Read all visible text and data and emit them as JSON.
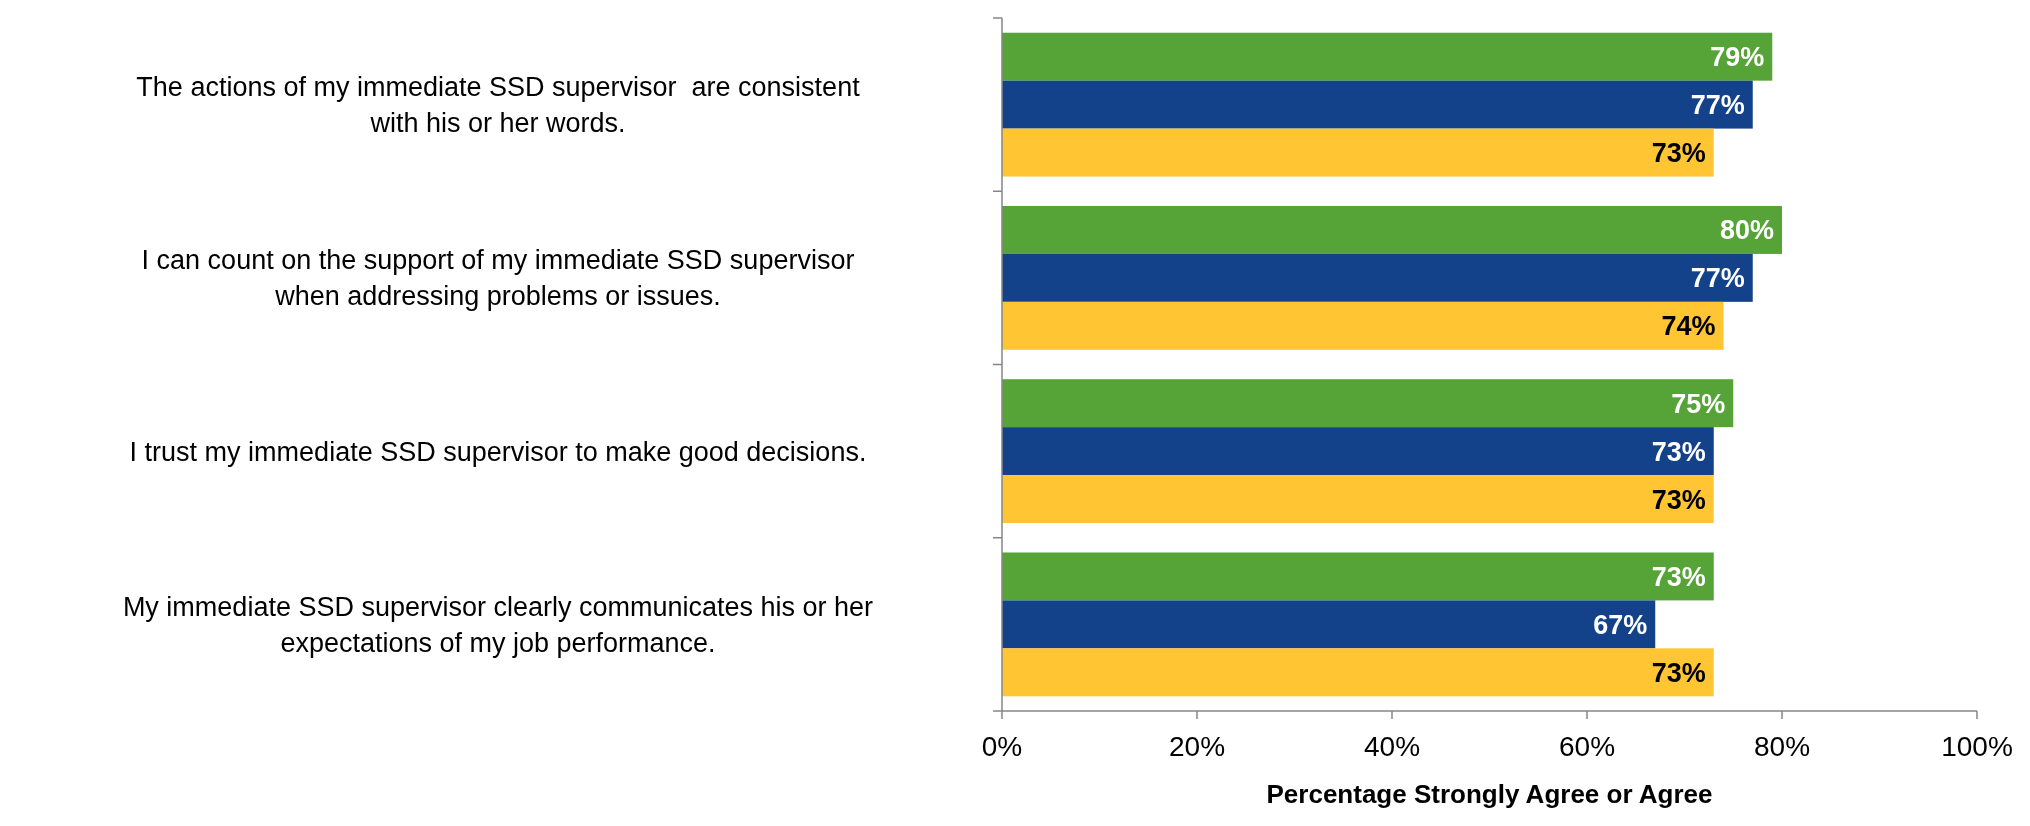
{
  "chart_data": {
    "type": "bar",
    "orientation": "horizontal",
    "xlabel": "Percentage Strongly Agree or Agree",
    "categories": [
      "The actions of my immediate SSD supervisor  are consistent with his or her words.",
      "I can count on the support of my immediate SSD supervisor when addressing problems or issues.",
      "I trust my immediate SSD supervisor to make good decisions.",
      "My immediate SSD supervisor clearly communicates his or her expectations of my job performance."
    ],
    "series": [
      {
        "color": "#56a337",
        "values": [
          79,
          80,
          75,
          73
        ],
        "value_labels": [
          "79%",
          "80%",
          "75%",
          "73%"
        ]
      },
      {
        "color": "#13428a",
        "values": [
          77,
          77,
          73,
          67
        ],
        "value_labels": [
          "77%",
          "77%",
          "73%",
          "67%"
        ]
      },
      {
        "color": "#ffc533",
        "values": [
          73,
          74,
          73,
          73
        ],
        "value_labels": [
          "73%",
          "74%",
          "73%",
          "73%"
        ]
      }
    ],
    "xlim": [
      0,
      100
    ],
    "xticks": [
      {
        "value": 0,
        "label": "0%"
      },
      {
        "value": 20,
        "label": "20%"
      },
      {
        "value": 40,
        "label": "40%"
      },
      {
        "value": 60,
        "label": "60%"
      },
      {
        "value": 80,
        "label": "80%"
      },
      {
        "value": 100,
        "label": "100%"
      }
    ],
    "grid": false
  }
}
